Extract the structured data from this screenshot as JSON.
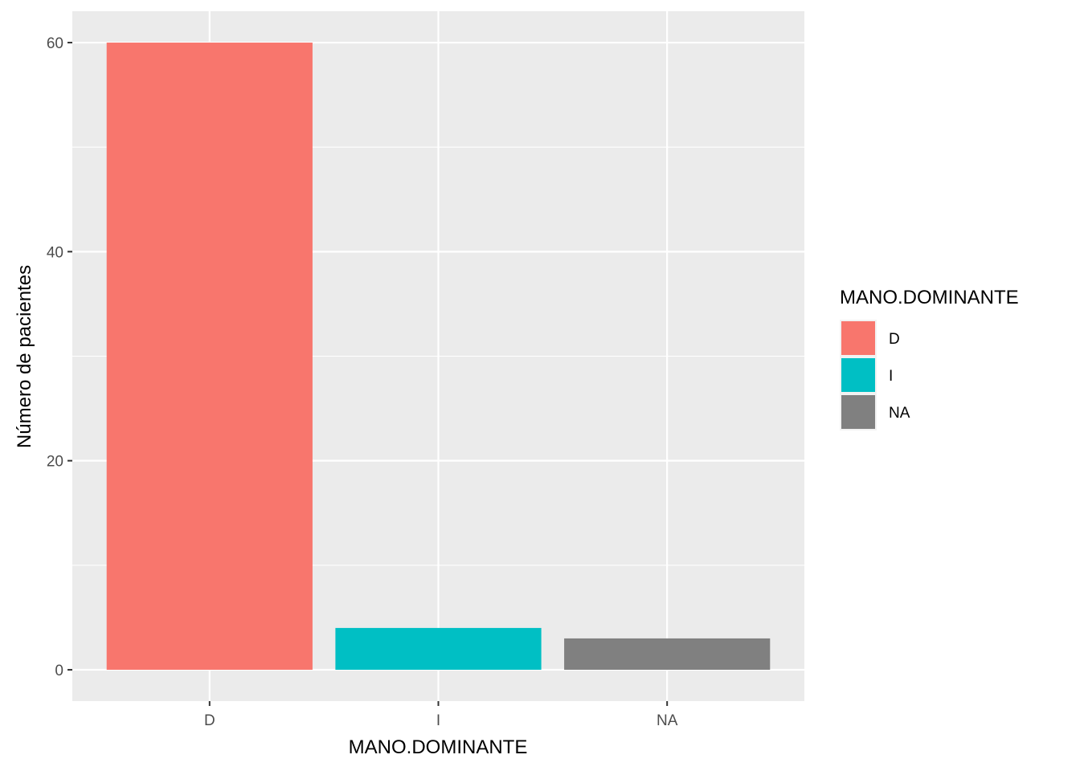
{
  "chart_data": {
    "type": "bar",
    "categories": [
      "D",
      "I",
      "NA"
    ],
    "values": [
      60,
      4,
      3
    ],
    "colors": [
      "#F8766D",
      "#00BFC4",
      "#808080"
    ],
    "xlabel": "MANO.DOMINANTE",
    "ylabel": "Número de pacientes",
    "ylim": [
      -3,
      63
    ],
    "yticks": [
      0,
      20,
      40,
      60
    ],
    "grid": true,
    "panel_background": "#EBEBEB",
    "legend": {
      "title": "MANO.DOMINANTE",
      "placement": "right",
      "items": [
        {
          "label": "D",
          "color": "#F8766D"
        },
        {
          "label": "I",
          "color": "#00BFC4"
        },
        {
          "label": "NA",
          "color": "#808080"
        }
      ]
    }
  }
}
